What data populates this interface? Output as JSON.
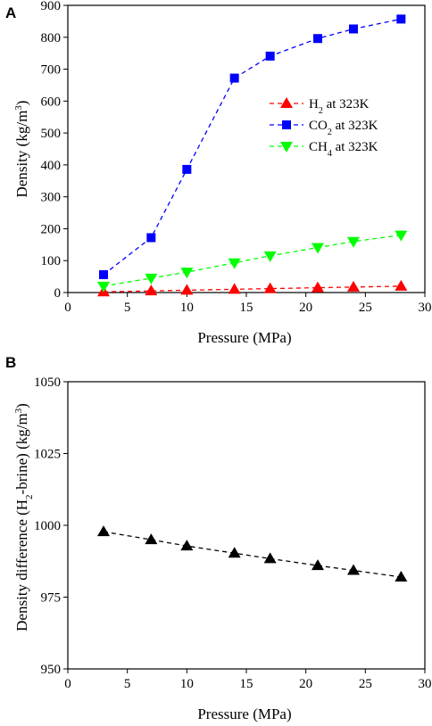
{
  "chart_data": [
    {
      "type": "line",
      "panel": "A",
      "xlabel": "Pressure (MPa)",
      "ylabel": "Density (kg/m³)",
      "ylabel_parts": {
        "main": "Density (kg/m",
        "sup": "3",
        "end": ")"
      },
      "xlim": [
        0,
        30
      ],
      "ylim": [
        0,
        900
      ],
      "xticks": [
        0,
        5,
        10,
        15,
        20,
        25,
        30
      ],
      "yticks": [
        0,
        100,
        200,
        300,
        400,
        500,
        600,
        700,
        800,
        900
      ],
      "grid": false,
      "legend_position": "center-right",
      "series": [
        {
          "name": "H₂ at 323K",
          "label_parts": {
            "pre": "H",
            "sub": "2",
            "post": " at 323K"
          },
          "marker": "triangle-up",
          "color": "#ff0000",
          "x": [
            3,
            7,
            10,
            14,
            17,
            21,
            24,
            28
          ],
          "y": [
            2.2,
            5.1,
            7.3,
            10.2,
            12.3,
            15.1,
            17.2,
            19.9
          ]
        },
        {
          "name": "CO₂ at 323K",
          "label_parts": {
            "pre": "CO",
            "sub": "2",
            "post": " at 323K"
          },
          "marker": "square",
          "color": "#0000ff",
          "x": [
            3,
            7,
            10,
            14,
            17,
            21,
            24,
            28
          ],
          "y": [
            56,
            172,
            386,
            672,
            741,
            796,
            826,
            857
          ]
        },
        {
          "name": "CH₄ at 323K",
          "label_parts": {
            "pre": "CH",
            "sub": "4",
            "post": " at 323K"
          },
          "marker": "triangle-down",
          "color": "#00ff00",
          "x": [
            3,
            7,
            10,
            14,
            17,
            21,
            24,
            28
          ],
          "y": [
            20,
            45,
            64,
            93,
            115,
            141,
            160,
            180
          ]
        }
      ]
    },
    {
      "type": "line",
      "panel": "B",
      "xlabel": "Pressure (MPa)",
      "ylabel": "Density difference (H₂-brine) (kg/m³)",
      "ylabel_parts": {
        "a": "Density difference (H",
        "sub": "2",
        "b": "-brine) (kg/m",
        "sup": "3",
        "c": ")"
      },
      "xlim": [
        0,
        30
      ],
      "ylim": [
        950,
        1050
      ],
      "xticks": [
        0,
        5,
        10,
        15,
        20,
        25,
        30
      ],
      "yticks": [
        950,
        975,
        1000,
        1025,
        1050
      ],
      "grid": false,
      "series": [
        {
          "marker": "triangle-up",
          "color": "#000000",
          "x": [
            3,
            7,
            10,
            14,
            17,
            21,
            24,
            28
          ],
          "y": [
            997.8,
            995.0,
            992.8,
            990.3,
            988.4,
            986.0,
            984.3,
            982.0
          ]
        }
      ]
    }
  ]
}
